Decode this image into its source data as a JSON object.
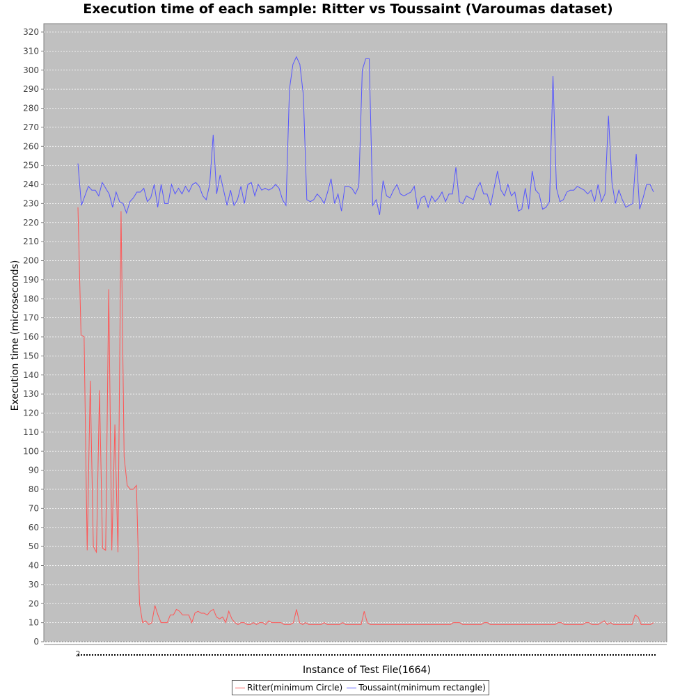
{
  "chart_data": {
    "type": "line",
    "title": "Execution time of each sample: Ritter vs Toussaint (Varoumas dataset)",
    "xlabel": "Instance of Test File(1664)",
    "ylabel": "Execution time (microseconds)",
    "x_tick_labels": [
      "2"
    ],
    "ylim": [
      0,
      320
    ],
    "y_ticks": [
      0,
      10,
      20,
      30,
      40,
      50,
      60,
      70,
      80,
      90,
      100,
      110,
      120,
      130,
      140,
      150,
      160,
      170,
      180,
      190,
      200,
      210,
      220,
      230,
      240,
      250,
      260,
      270,
      280,
      290,
      300,
      310,
      320
    ],
    "grid": true,
    "legend_position": "bottom",
    "series": [
      {
        "name": "Ritter(minimum Circle)",
        "color": "#ff5555",
        "values": [
          228,
          161,
          160,
          48,
          137,
          50,
          47,
          132,
          49,
          48,
          185,
          48,
          114,
          47,
          226,
          97,
          82,
          80,
          80,
          82,
          20,
          10,
          11,
          9,
          10,
          19,
          14,
          10,
          10,
          10,
          14,
          14,
          17,
          16,
          14,
          14,
          14,
          10,
          15,
          16,
          15,
          15,
          14,
          16,
          17,
          13,
          12,
          13,
          10,
          16,
          12,
          10,
          9,
          10,
          10,
          9,
          9,
          10,
          9,
          10,
          10,
          9,
          11,
          10,
          10,
          10,
          10,
          9,
          9,
          9,
          10,
          17,
          10,
          9,
          10,
          9,
          9,
          9,
          9,
          9,
          10,
          9,
          9,
          9,
          9,
          9,
          10,
          9,
          9,
          9,
          9,
          9,
          9,
          16,
          10,
          9,
          9,
          9,
          9,
          9,
          9,
          9,
          9,
          9,
          9,
          9,
          9,
          9,
          9,
          9,
          9,
          9,
          9,
          9,
          9,
          9,
          9,
          9,
          9,
          9,
          9,
          9,
          10,
          10,
          10,
          9,
          9,
          9,
          9,
          9,
          9,
          9,
          10,
          10,
          9,
          9,
          9,
          9,
          9,
          9,
          9,
          9,
          9,
          9,
          9,
          9,
          9,
          9,
          9,
          9,
          9,
          9,
          9,
          9,
          9,
          9,
          10,
          10,
          9,
          9,
          9,
          9,
          9,
          9,
          9,
          10,
          10,
          9,
          9,
          9,
          10,
          11,
          9,
          10,
          9,
          9,
          9,
          9,
          9,
          9,
          9,
          14,
          13,
          9,
          9,
          9,
          9,
          10
        ]
      },
      {
        "name": "Toussaint(minimum rectangle)",
        "color": "#5555ff",
        "values": [
          251,
          229,
          234,
          239,
          237,
          237,
          234,
          241,
          238,
          235,
          228,
          236,
          231,
          230,
          225,
          231,
          233,
          236,
          236,
          238,
          231,
          233,
          240,
          228,
          240,
          230,
          230,
          240,
          235,
          238,
          235,
          239,
          236,
          240,
          241,
          239,
          234,
          232,
          240,
          266,
          235,
          245,
          237,
          229,
          237,
          229,
          232,
          239,
          230,
          240,
          241,
          234,
          240,
          237,
          238,
          237,
          238,
          240,
          238,
          232,
          229,
          290,
          303,
          307,
          303,
          287,
          232,
          231,
          232,
          235,
          233,
          230,
          236,
          243,
          230,
          235,
          226,
          239,
          239,
          238,
          235,
          239,
          300,
          306,
          306,
          229,
          232,
          224,
          242,
          234,
          233,
          237,
          240,
          235,
          234,
          235,
          236,
          239,
          227,
          233,
          234,
          228,
          234,
          231,
          233,
          236,
          231,
          235,
          235,
          249,
          231,
          230,
          234,
          233,
          232,
          238,
          241,
          235,
          235,
          229,
          238,
          247,
          237,
          234,
          240,
          234,
          236,
          226,
          227,
          238,
          227,
          247,
          237,
          235,
          227,
          228,
          231,
          297,
          238,
          231,
          232,
          236,
          237,
          237,
          239,
          238,
          237,
          235,
          237,
          231,
          240,
          231,
          235,
          276,
          241,
          230,
          237,
          232,
          228,
          229,
          230,
          256,
          227,
          233,
          240,
          240,
          236
        ]
      }
    ]
  }
}
